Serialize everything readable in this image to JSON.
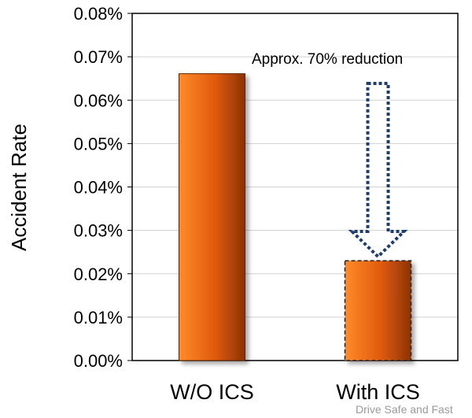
{
  "chart_data": {
    "type": "bar",
    "categories": [
      "W/O ICS",
      "With ICS"
    ],
    "values": [
      0.0661,
      0.023
    ],
    "ylabel": "Accident Rate",
    "ylim": [
      0,
      0.08
    ],
    "yticks": [
      0.0,
      0.01,
      0.02,
      0.03,
      0.04,
      0.05,
      0.06,
      0.07,
      0.08
    ],
    "ytick_labels": [
      "0.00%",
      "0.01%",
      "0.02%",
      "0.03%",
      "0.04%",
      "0.05%",
      "0.06%",
      "0.07%",
      "0.08%"
    ],
    "grid": true,
    "bar_color": "#e85f0c",
    "annotation": "Approx. 70% reduction",
    "arrow_color": "#1f3c6e"
  },
  "watermark": "Drive Safe and Fast"
}
